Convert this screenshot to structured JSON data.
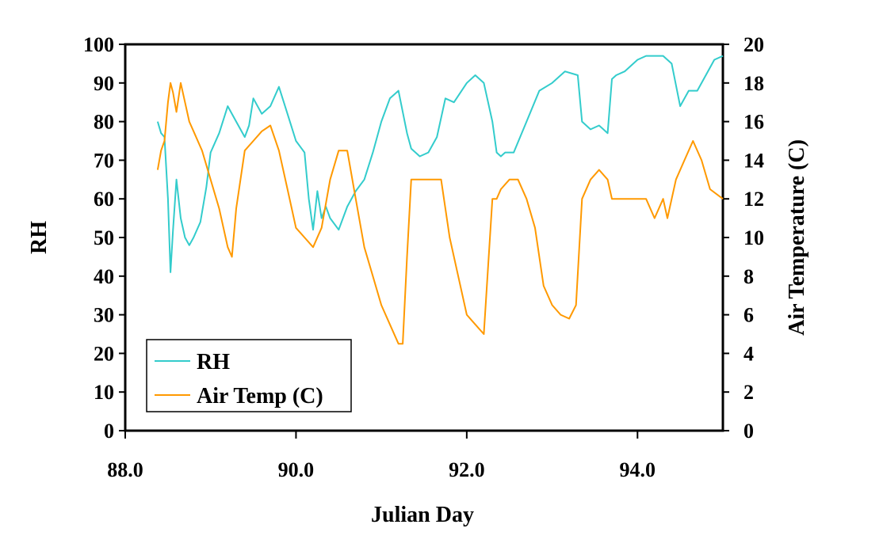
{
  "chart_data": {
    "type": "line",
    "xlabel": "Julian Day",
    "ylabel": "RH",
    "y2label": "Air Temperature (C)",
    "xlim": [
      88.0,
      95.0
    ],
    "ylim": [
      0,
      100
    ],
    "y2lim": [
      0,
      20
    ],
    "x_ticks": [
      88.0,
      90.0,
      92.0,
      94.0
    ],
    "x_tick_labels": [
      "88.0",
      "90.0",
      "92.0",
      "94.0"
    ],
    "y_ticks": [
      0,
      10,
      20,
      30,
      40,
      50,
      60,
      70,
      80,
      90,
      100
    ],
    "y_tick_labels": [
      "0",
      "10",
      "20",
      "30",
      "40",
      "50",
      "60",
      "70",
      "80",
      "90",
      "100"
    ],
    "y2_ticks": [
      0,
      2,
      4,
      6,
      8,
      10,
      12,
      14,
      16,
      18,
      20
    ],
    "y2_tick_labels": [
      "0",
      "2",
      "4",
      "6",
      "8",
      "10",
      "12",
      "14",
      "16",
      "18",
      "20"
    ],
    "grid": false,
    "legend_position": "bottom-left",
    "series": [
      {
        "name": "RH",
        "axis": "left",
        "color": "#33cccc",
        "x": [
          88.38,
          88.42,
          88.46,
          88.5,
          88.53,
          88.56,
          88.6,
          88.65,
          88.7,
          88.75,
          88.8,
          88.88,
          88.95,
          89.0,
          89.1,
          89.2,
          89.3,
          89.4,
          89.45,
          89.5,
          89.6,
          89.7,
          89.8,
          89.9,
          90.0,
          90.1,
          90.15,
          90.2,
          90.25,
          90.3,
          90.35,
          90.4,
          90.5,
          90.6,
          90.7,
          90.8,
          90.9,
          91.0,
          91.1,
          91.2,
          91.3,
          91.35,
          91.45,
          91.55,
          91.65,
          91.75,
          91.85,
          92.0,
          92.1,
          92.2,
          92.3,
          92.35,
          92.4,
          92.45,
          92.55,
          92.7,
          92.85,
          93.0,
          93.15,
          93.3,
          93.35,
          93.45,
          93.55,
          93.65,
          93.7,
          93.75,
          93.85,
          94.0,
          94.1,
          94.2,
          94.3,
          94.4,
          94.5,
          94.6,
          94.7,
          94.8,
          94.9,
          95.0
        ],
        "values": [
          80,
          77,
          76,
          60,
          41,
          52,
          65,
          55,
          50,
          48,
          50,
          54,
          63,
          72,
          77,
          84,
          80,
          76,
          79,
          86,
          82,
          84,
          89,
          82,
          75,
          72,
          60,
          52,
          62,
          55,
          58,
          55,
          52,
          58,
          62,
          65,
          72,
          80,
          86,
          88,
          77,
          73,
          71,
          72,
          76,
          86,
          85,
          90,
          92,
          90,
          80,
          72,
          71,
          72,
          72,
          80,
          88,
          90,
          93,
          92,
          80,
          78,
          79,
          77,
          91,
          92,
          93,
          96,
          97,
          97,
          97,
          95,
          84,
          88,
          88,
          92,
          96,
          97
        ]
      },
      {
        "name": "Air Temp (C)",
        "axis": "right",
        "color": "#ff9900",
        "x": [
          88.38,
          88.42,
          88.46,
          88.5,
          88.53,
          88.56,
          88.6,
          88.65,
          88.7,
          88.75,
          88.8,
          88.9,
          89.0,
          89.1,
          89.2,
          89.25,
          89.3,
          89.4,
          89.5,
          89.6,
          89.7,
          89.8,
          89.9,
          90.0,
          90.1,
          90.2,
          90.3,
          90.4,
          90.5,
          90.6,
          90.7,
          90.8,
          90.9,
          91.0,
          91.1,
          91.2,
          91.25,
          91.3,
          91.35,
          91.4,
          91.5,
          91.6,
          91.7,
          91.8,
          91.9,
          92.0,
          92.1,
          92.2,
          92.3,
          92.35,
          92.4,
          92.5,
          92.6,
          92.7,
          92.8,
          92.9,
          93.0,
          93.1,
          93.2,
          93.28,
          93.35,
          93.45,
          93.55,
          93.65,
          93.7,
          93.8,
          94.0,
          94.1,
          94.2,
          94.3,
          94.35,
          94.45,
          94.55,
          94.65,
          94.75,
          94.85,
          95.0
        ],
        "values": [
          13.5,
          14.5,
          15.0,
          17.0,
          18.0,
          17.5,
          16.5,
          18.0,
          17.0,
          16.0,
          15.5,
          14.5,
          13.0,
          11.5,
          9.5,
          9.0,
          11.5,
          14.5,
          15.0,
          15.5,
          15.8,
          14.5,
          12.5,
          10.5,
          10.0,
          9.5,
          10.5,
          13.0,
          14.5,
          14.5,
          12.0,
          9.5,
          8.0,
          6.5,
          5.5,
          4.5,
          4.5,
          9.0,
          13.0,
          13.0,
          13.0,
          13.0,
          13.0,
          10.0,
          8.0,
          6.0,
          5.5,
          5.0,
          12.0,
          12.0,
          12.5,
          13.0,
          13.0,
          12.0,
          10.5,
          7.5,
          6.5,
          6.0,
          5.8,
          6.5,
          12.0,
          13.0,
          13.5,
          13.0,
          12.0,
          12.0,
          12.0,
          12.0,
          11.0,
          12.0,
          11.0,
          13.0,
          14.0,
          15.0,
          14.0,
          12.5,
          12.0
        ]
      }
    ]
  }
}
